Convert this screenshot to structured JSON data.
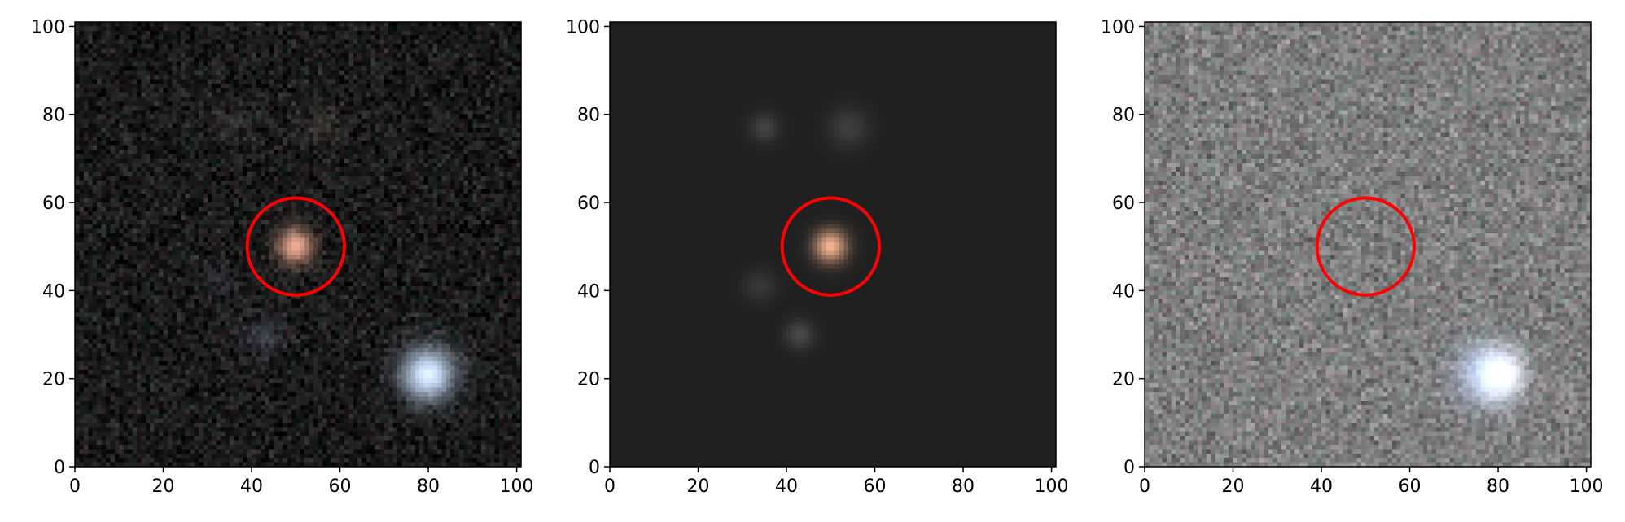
{
  "figure": {
    "panels": [
      {
        "name": "observed-image",
        "background": "#151515",
        "noise": {
          "base": "#1a1a1a",
          "amp": 26
        },
        "sources": [
          {
            "x": 50,
            "y": 50,
            "sigma": 2.8,
            "color": "#e0a089",
            "intensity": 0.85
          },
          {
            "x": 80,
            "y": 21,
            "sigma": 4.2,
            "color": "#cfe3ff",
            "intensity": 0.85
          },
          {
            "x": 43,
            "y": 30,
            "sigma": 3.0,
            "color": "#5f6a86",
            "intensity": 0.3
          },
          {
            "x": 36,
            "y": 78,
            "sigma": 3.0,
            "color": "#6b625f",
            "intensity": 0.22
          },
          {
            "x": 56,
            "y": 77,
            "sigma": 3.2,
            "color": "#6f6b5c",
            "intensity": 0.22
          },
          {
            "x": 33,
            "y": 42,
            "sigma": 3.0,
            "color": "#575b6c",
            "intensity": 0.18
          }
        ],
        "circle": {
          "x": 50,
          "y": 50,
          "r": 11,
          "color": "#ff0000"
        }
      },
      {
        "name": "model-image",
        "background": "#202020",
        "noise": {
          "base": "#202020",
          "amp": 0
        },
        "sources": [
          {
            "x": 50,
            "y": 50,
            "sigma": 2.6,
            "color": "#f0b08c",
            "intensity": 0.8
          },
          {
            "x": 35,
            "y": 77,
            "sigma": 2.3,
            "color": "#6a6a6a",
            "intensity": 0.35
          },
          {
            "x": 54,
            "y": 77,
            "sigma": 3.2,
            "color": "#6a6a6a",
            "intensity": 0.3
          },
          {
            "x": 34,
            "y": 41,
            "sigma": 2.6,
            "color": "#5a5a5a",
            "intensity": 0.3
          },
          {
            "x": 43,
            "y": 30,
            "sigma": 2.3,
            "color": "#777777",
            "intensity": 0.35
          }
        ],
        "circle": {
          "x": 50,
          "y": 50,
          "r": 11,
          "color": "#ff0000"
        }
      },
      {
        "name": "residual-image",
        "background": "#7e7e7e",
        "noise": {
          "base": "#7e7e7e",
          "amp": 34
        },
        "sources": [
          {
            "x": 80,
            "y": 21,
            "sigma": 3.8,
            "color": "#ffffff",
            "intensity": 1.0
          },
          {
            "x": 77,
            "y": 21,
            "sigma": 5.0,
            "color": "#a9c6ff",
            "intensity": 0.45
          }
        ],
        "circle": {
          "x": 50,
          "y": 50,
          "r": 11,
          "color": "#ff0000"
        }
      }
    ],
    "axes": {
      "xlim": [
        0,
        101
      ],
      "ylim": [
        0,
        101
      ],
      "ticks": [
        0,
        20,
        40,
        60,
        80,
        100
      ],
      "tick_labels": [
        "0",
        "20",
        "40",
        "60",
        "80",
        "100"
      ]
    }
  }
}
